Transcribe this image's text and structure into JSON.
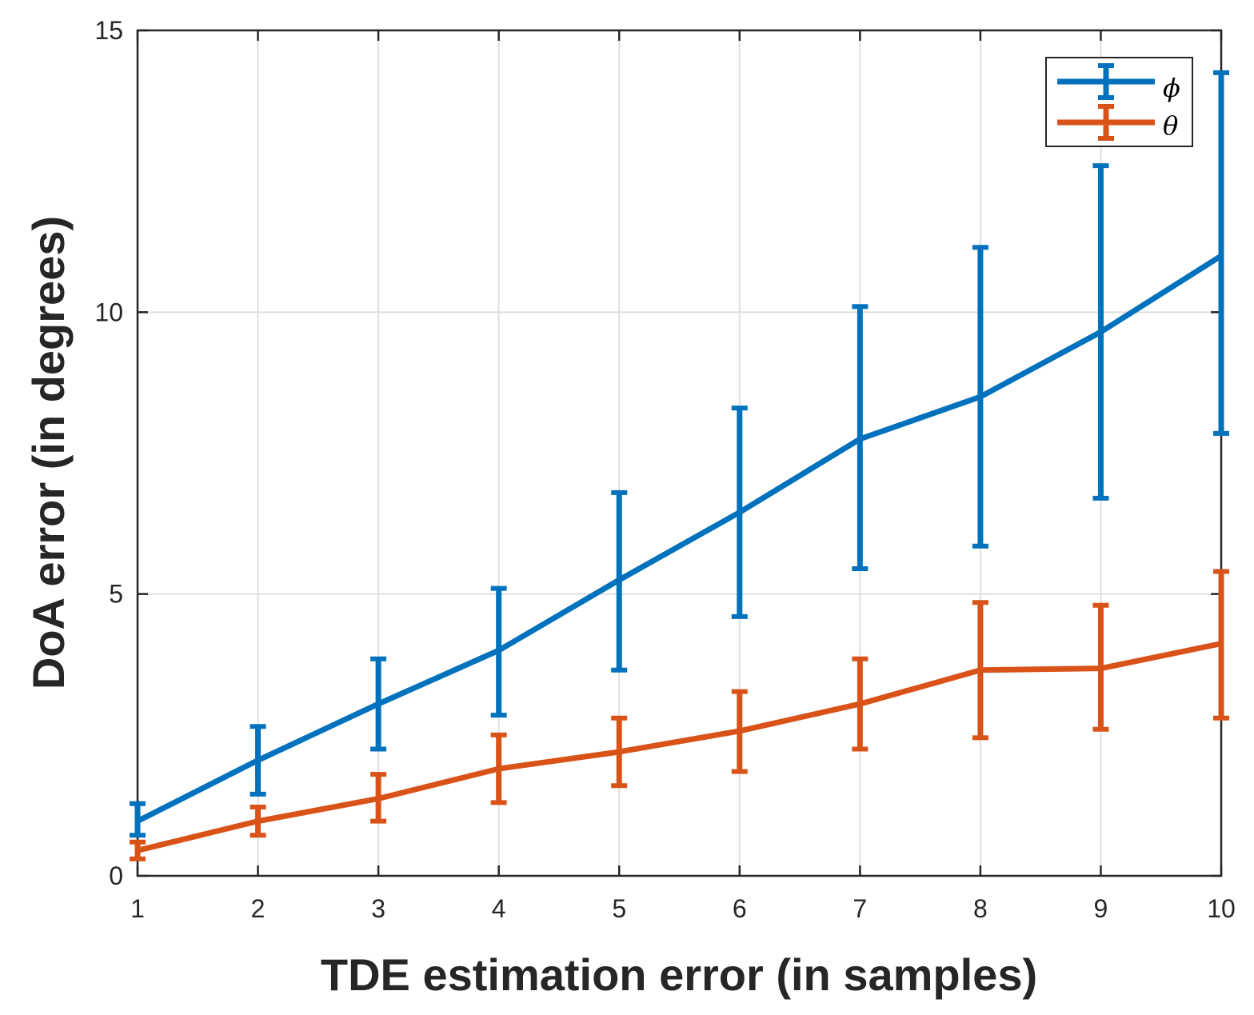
{
  "chart_data": {
    "type": "line",
    "title": "",
    "xlabel": "TDE estimation error (in samples)",
    "ylabel": "DoA error (in degrees)",
    "xlim": [
      1,
      10
    ],
    "ylim": [
      0,
      15
    ],
    "xticks": [
      "1",
      "2",
      "3",
      "4",
      "5",
      "6",
      "7",
      "8",
      "9",
      "10"
    ],
    "yticks": [
      "0",
      "5",
      "10",
      "15"
    ],
    "x": [
      1,
      2,
      3,
      4,
      5,
      6,
      7,
      8,
      9,
      10
    ],
    "grid": true,
    "legend_position": "top-right",
    "series": [
      {
        "name": "ϕ",
        "color": "#0072BD",
        "values": [
          0.97,
          2.05,
          3.05,
          4.0,
          5.25,
          6.45,
          7.75,
          8.5,
          9.65,
          11.0
        ],
        "lower": [
          0.72,
          1.45,
          2.25,
          2.85,
          3.65,
          4.6,
          5.45,
          5.85,
          6.7,
          7.85
        ],
        "upper": [
          1.28,
          2.65,
          3.85,
          5.1,
          6.8,
          8.3,
          10.1,
          11.15,
          12.6,
          14.25
        ]
      },
      {
        "name": "θ",
        "color": "#D95319",
        "values": [
          0.45,
          0.97,
          1.37,
          1.9,
          2.2,
          2.57,
          3.05,
          3.65,
          3.68,
          4.12
        ],
        "lower": [
          0.3,
          0.72,
          0.97,
          1.3,
          1.6,
          1.85,
          2.25,
          2.45,
          2.6,
          2.8
        ],
        "upper": [
          0.6,
          1.22,
          1.8,
          2.5,
          2.8,
          3.27,
          3.85,
          4.85,
          4.8,
          5.4
        ]
      }
    ]
  }
}
